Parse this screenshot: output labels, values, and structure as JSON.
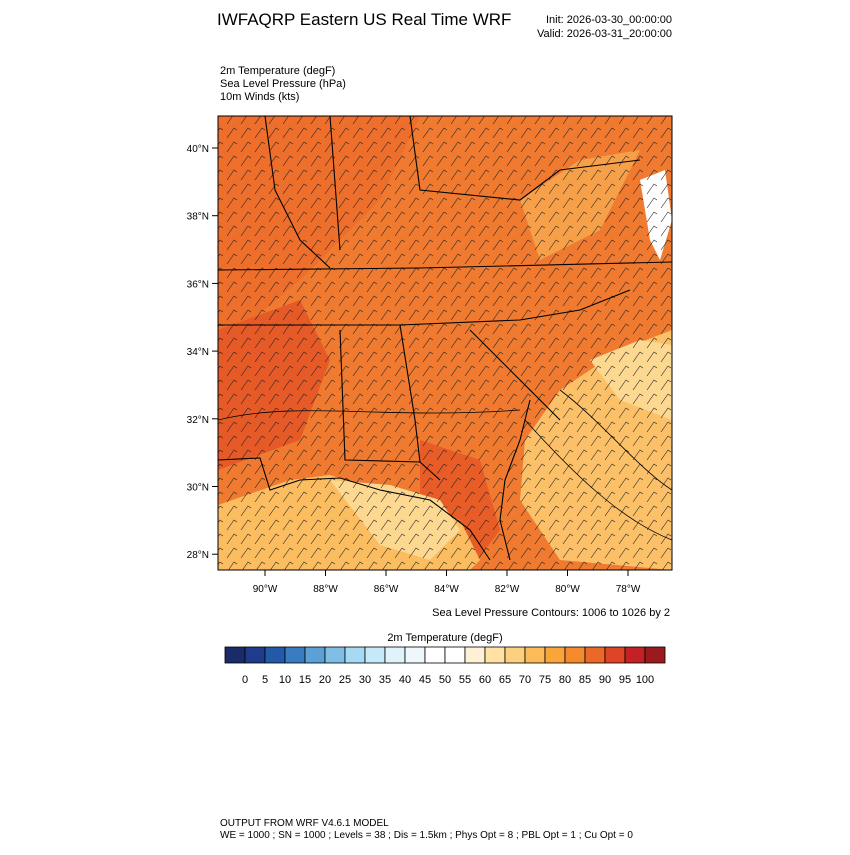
{
  "header": {
    "title": "IWFAQRP Eastern US Real Time WRF",
    "init": "Init: 2026-03-30_00:00:00",
    "valid": "Valid: 2026-03-31_20:00:00"
  },
  "fields": [
    "2m Temperature   (degF)",
    "Sea Level Pressure   (hPa)",
    "10m Winds   (kts)"
  ],
  "map": {
    "lat_labels": [
      "40°N",
      "38°N",
      "36°N",
      "34°N",
      "32°N",
      "30°N",
      "28°N"
    ],
    "lon_labels": [
      "90°W",
      "88°W",
      "86°W",
      "84°W",
      "82°W",
      "80°W",
      "78°W"
    ],
    "contour_note": "Sea Level Pressure Contours: 1006 to 1026 by 2"
  },
  "colorbar": {
    "title": "2m Temperature  (degF)",
    "labels": [
      0,
      5,
      10,
      15,
      20,
      25,
      30,
      35,
      40,
      45,
      50,
      55,
      60,
      65,
      70,
      75,
      80,
      85,
      90,
      95,
      100
    ],
    "colors": [
      "#1b2a68",
      "#1f3c8c",
      "#2459aa",
      "#3a7cc2",
      "#5ba1d5",
      "#80bfe5",
      "#a6daf2",
      "#c6e9f7",
      "#e1f3fa",
      "#eef8fb",
      "#ffffff",
      "#ffffff",
      "#fff1d6",
      "#ffe2a4",
      "#fdd07f",
      "#fbbb58",
      "#f8a53a",
      "#f48a2d",
      "#ec6828",
      "#de4426",
      "#c32124",
      "#9b1a1e"
    ]
  },
  "footer": {
    "line1": "OUTPUT FROM WRF V4.6.1 MODEL",
    "line2": "WE = 1000 ; SN = 1000 ; Levels = 38 ; Dis = 1.5km ; Phys Opt = 8 ; PBL Opt = 1 ; Cu Opt = 0"
  }
}
